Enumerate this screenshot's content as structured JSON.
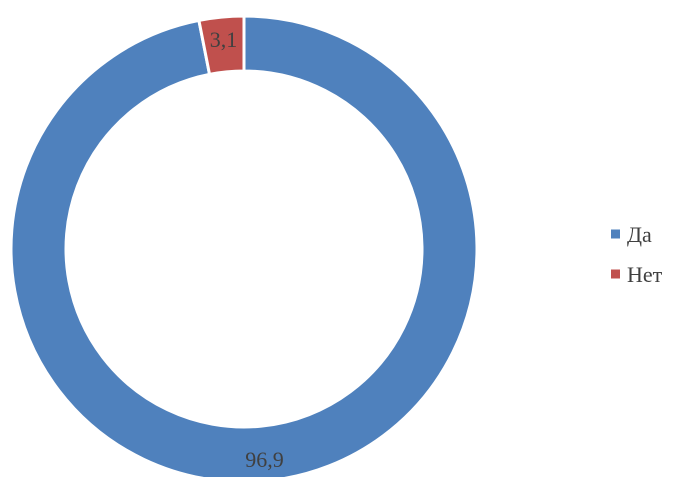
{
  "chart_data": {
    "type": "pie",
    "style": "doughnut",
    "categories": [
      "Да",
      "Нет"
    ],
    "values": [
      96.9,
      3.1
    ],
    "value_labels": [
      "96,9",
      "3,1"
    ],
    "colors": [
      "#4F81BD",
      "#C0504D"
    ],
    "title": "",
    "legend_position": "right"
  }
}
